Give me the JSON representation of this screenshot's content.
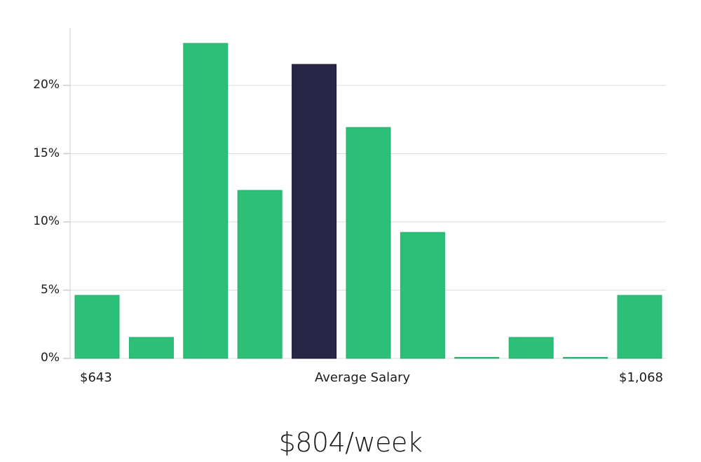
{
  "chart_data": {
    "type": "bar",
    "title": "",
    "xlabel": "",
    "ylabel": "",
    "categories": [
      "bin1",
      "bin2",
      "bin3",
      "bin4",
      "bin5",
      "bin6",
      "bin7",
      "bin8",
      "bin9",
      "bin10",
      "bin11"
    ],
    "values": [
      4.62,
      1.54,
      23.08,
      12.31,
      21.54,
      16.92,
      9.23,
      0,
      1.54,
      0,
      4.62
    ],
    "highlight_index": 4,
    "ylim": [
      0,
      24
    ],
    "yticks": [
      0,
      5,
      10,
      15,
      20
    ],
    "ytick_labels": [
      "0%",
      "5%",
      "10%",
      "15%",
      "20%"
    ],
    "grid": true,
    "x_annotations": {
      "left": "$643",
      "center": "Average Salary",
      "right": "$1,068"
    },
    "colors": {
      "bar": "#2bbf78",
      "highlight": "#282546",
      "grid": "#dddddd",
      "axis": "#cccccc"
    }
  },
  "labels": {
    "min_salary": "$643",
    "avg_label": "Average Salary",
    "max_salary": "$1,068",
    "headline": "$804/week"
  }
}
